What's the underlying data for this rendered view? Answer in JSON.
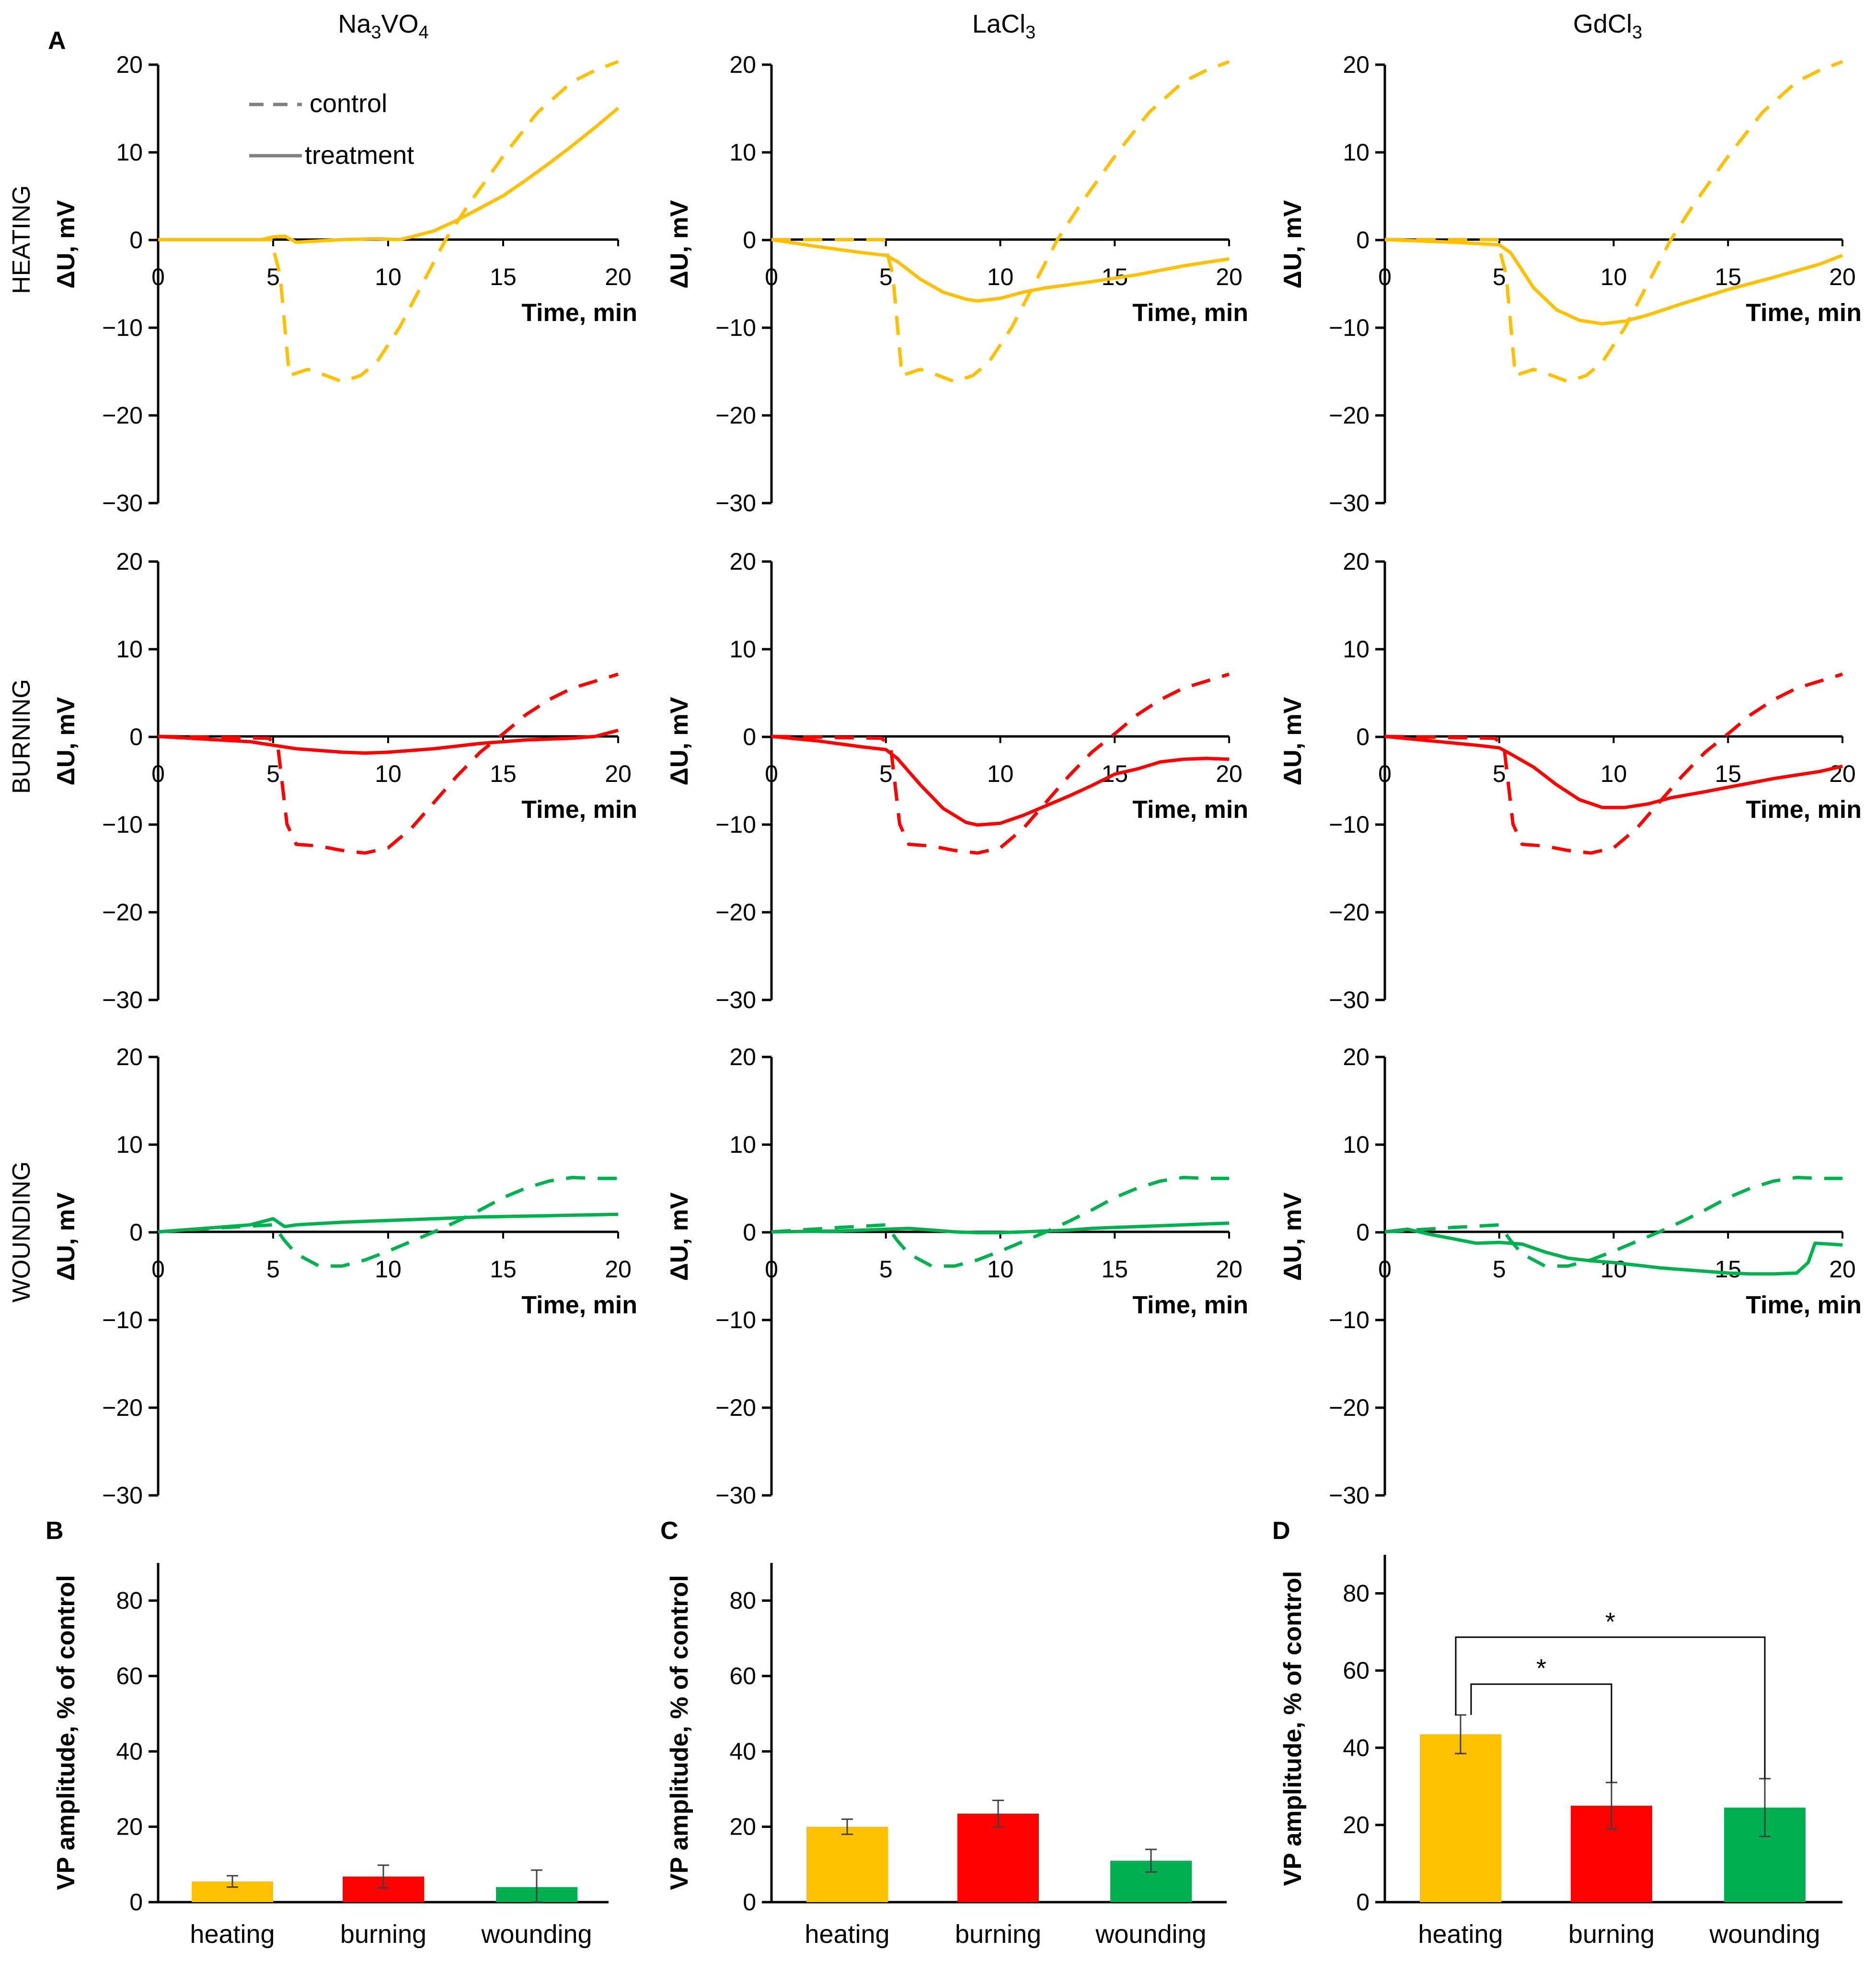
{
  "figure": {
    "panel_labels": {
      "A": "A",
      "B": "B",
      "C": "C",
      "D": "D"
    },
    "columns": [
      {
        "main": "Na",
        "sub1": "3",
        "mid": "VO",
        "sub2": "4"
      },
      {
        "main": "LaCl",
        "sub1": "3",
        "mid": "",
        "sub2": ""
      },
      {
        "main": "GdCl",
        "sub1": "3",
        "mid": "",
        "sub2": ""
      }
    ],
    "rows": [
      "HEATING",
      "BURNING",
      "WOUNDING"
    ],
    "legend": {
      "control": "control",
      "treatment": "treatment"
    },
    "line_ylabel": "ΔU, mV",
    "line_xlabel": "Time, min",
    "line_xticks": [
      "0",
      "5",
      "10",
      "15",
      "20"
    ],
    "line_yticks": [
      "20",
      "10",
      "0",
      "−10",
      "−20",
      "−30"
    ],
    "bar_ylabel": "VP amplitude, % of control",
    "bar_yticks": [
      "0",
      "20",
      "40",
      "60",
      "80"
    ],
    "bar_categories": [
      "heating",
      "burning",
      "wounding"
    ],
    "significance": [
      "*",
      "*"
    ]
  },
  "colors": {
    "heating": "#FFC000",
    "burning": "#FF0000",
    "wounding": "#00B050",
    "axis": "#000000"
  },
  "chart_data": [
    {
      "type": "line",
      "title": "Na3VO4 / HEATING",
      "xlabel": "Time, min",
      "ylabel": "ΔU, mV",
      "xlim": [
        0,
        20
      ],
      "ylim": [
        -30,
        20
      ],
      "color": "heating",
      "series": [
        {
          "name": "control",
          "style": "dashed",
          "x": [
            0,
            4.9,
            5.3,
            5.7,
            6.5,
            7.3,
            8,
            8.8,
            9.5,
            10.5,
            11.5,
            12.5,
            13.5,
            15,
            16.5,
            18,
            19,
            20
          ],
          "y": [
            0,
            0,
            -4,
            -15.5,
            -14.8,
            -15.5,
            -16.2,
            -15.5,
            -14,
            -10,
            -5,
            0,
            4,
            9.5,
            14.5,
            18,
            19.3,
            20.3
          ]
        },
        {
          "name": "treatment",
          "style": "solid",
          "x": [
            0,
            4.5,
            5,
            5.5,
            6,
            8,
            9.5,
            10.5,
            11,
            12,
            13,
            14,
            15,
            16,
            17,
            18,
            19,
            20
          ],
          "y": [
            0,
            0,
            0.3,
            0.4,
            -0.3,
            0,
            0.1,
            0,
            0.3,
            1,
            2.2,
            3.6,
            5,
            6.8,
            8.7,
            10.7,
            12.8,
            15
          ]
        }
      ]
    },
    {
      "type": "line",
      "title": "LaCl3 / HEATING",
      "xlabel": "Time, min",
      "ylabel": "ΔU, mV",
      "xlim": [
        0,
        20
      ],
      "ylim": [
        -30,
        20
      ],
      "color": "heating",
      "series": [
        {
          "name": "control",
          "style": "dashed",
          "x": [
            0,
            4.9,
            5.3,
            5.7,
            6.5,
            7.3,
            8,
            8.8,
            9.5,
            10.5,
            11.5,
            12.5,
            13.5,
            15,
            16.5,
            18,
            19,
            20
          ],
          "y": [
            0,
            0,
            -4,
            -15.5,
            -14.8,
            -15.5,
            -16.2,
            -15.5,
            -14,
            -10,
            -5,
            0,
            4,
            9.5,
            14.5,
            18,
            19.3,
            20.3
          ]
        },
        {
          "name": "treatment",
          "style": "solid",
          "x": [
            0,
            2,
            4,
            5,
            5.5,
            6.5,
            7.5,
            8.5,
            9,
            10,
            11,
            12,
            14,
            16,
            18,
            20
          ],
          "y": [
            0,
            -0.8,
            -1.5,
            -1.8,
            -2.5,
            -4.5,
            -6,
            -6.8,
            -7,
            -6.7,
            -6,
            -5.5,
            -4.8,
            -4,
            -3,
            -2.2
          ]
        }
      ]
    },
    {
      "type": "line",
      "title": "GdCl3 / HEATING",
      "xlabel": "Time, min",
      "ylabel": "ΔU, mV",
      "xlim": [
        0,
        20
      ],
      "ylim": [
        -30,
        20
      ],
      "color": "heating",
      "series": [
        {
          "name": "control",
          "style": "dashed",
          "x": [
            0,
            4.9,
            5.3,
            5.7,
            6.5,
            7.3,
            8,
            8.8,
            9.5,
            10.5,
            11.5,
            12.5,
            13.5,
            15,
            16.5,
            18,
            19,
            20
          ],
          "y": [
            0,
            0,
            -4,
            -15.5,
            -14.8,
            -15.5,
            -16.2,
            -15.5,
            -14,
            -10,
            -5,
            0,
            4,
            9.5,
            14.5,
            18,
            19.3,
            20.3
          ]
        },
        {
          "name": "treatment",
          "style": "solid",
          "x": [
            0,
            3,
            5,
            5.5,
            6.5,
            7.5,
            8.5,
            9.5,
            10.5,
            11.5,
            13,
            15,
            17,
            19,
            20
          ],
          "y": [
            0,
            -0.3,
            -0.6,
            -1.5,
            -5.5,
            -8,
            -9.2,
            -9.6,
            -9.3,
            -8.6,
            -7.3,
            -5.7,
            -4.3,
            -2.8,
            -1.8
          ]
        }
      ]
    },
    {
      "type": "line",
      "title": "Na3VO4 / BURNING",
      "xlabel": "Time, min",
      "ylabel": "ΔU, mV",
      "xlim": [
        0,
        20
      ],
      "ylim": [
        -30,
        20
      ],
      "color": "burning",
      "series": [
        {
          "name": "control",
          "style": "dashed",
          "x": [
            0,
            4.8,
            5.2,
            5.6,
            6,
            7,
            8,
            9,
            10,
            11,
            12,
            13,
            14,
            15,
            16,
            17,
            18,
            19,
            20
          ],
          "y": [
            0,
            -0.2,
            -1,
            -10,
            -12.3,
            -12.5,
            -13,
            -13.3,
            -12.7,
            -10.5,
            -7.5,
            -4.5,
            -1.8,
            0.3,
            2.5,
            4.2,
            5.5,
            6.3,
            7.1
          ]
        },
        {
          "name": "treatment",
          "style": "solid",
          "x": [
            0,
            2,
            4,
            5,
            6,
            7,
            8,
            9,
            10,
            11,
            12,
            13,
            14,
            15,
            16,
            17,
            18,
            19,
            20
          ],
          "y": [
            0,
            -0.3,
            -0.6,
            -1,
            -1.4,
            -1.6,
            -1.8,
            -1.9,
            -1.8,
            -1.6,
            -1.4,
            -1.1,
            -0.8,
            -0.6,
            -0.4,
            -0.3,
            -0.2,
            0,
            0.7
          ]
        }
      ]
    },
    {
      "type": "line",
      "title": "LaCl3 / BURNING",
      "xlabel": "Time, min",
      "ylabel": "ΔU, mV",
      "xlim": [
        0,
        20
      ],
      "ylim": [
        -30,
        20
      ],
      "color": "burning",
      "series": [
        {
          "name": "control",
          "style": "dashed",
          "x": [
            0,
            4.8,
            5.2,
            5.6,
            6,
            7,
            8,
            9,
            10,
            11,
            12,
            13,
            14,
            15,
            16,
            17,
            18,
            19,
            20
          ],
          "y": [
            0,
            -0.2,
            -1,
            -10,
            -12.3,
            -12.5,
            -13,
            -13.3,
            -12.7,
            -10.5,
            -7.5,
            -4.5,
            -1.8,
            0.3,
            2.5,
            4.2,
            5.5,
            6.3,
            7.1
          ]
        },
        {
          "name": "treatment",
          "style": "solid",
          "x": [
            0,
            2,
            4,
            5,
            5.5,
            6.5,
            7.5,
            8.5,
            9,
            10,
            11,
            12,
            13,
            14,
            15,
            16,
            17,
            18,
            19,
            20
          ],
          "y": [
            0,
            -0.5,
            -1.2,
            -1.5,
            -2.5,
            -5.5,
            -8.2,
            -9.8,
            -10.1,
            -9.9,
            -9,
            -7.9,
            -6.8,
            -5.6,
            -4.3,
            -3.7,
            -2.9,
            -2.6,
            -2.5,
            -2.6
          ]
        }
      ]
    },
    {
      "type": "line",
      "title": "GdCl3 / BURNING",
      "xlabel": "Time, min",
      "ylabel": "ΔU, mV",
      "xlim": [
        0,
        20
      ],
      "ylim": [
        -30,
        20
      ],
      "color": "burning",
      "series": [
        {
          "name": "control",
          "style": "dashed",
          "x": [
            0,
            4.8,
            5.2,
            5.6,
            6,
            7,
            8,
            9,
            10,
            11,
            12,
            13,
            14,
            15,
            16,
            17,
            18,
            19,
            20
          ],
          "y": [
            0,
            -0.2,
            -1,
            -10,
            -12.3,
            -12.5,
            -13,
            -13.3,
            -12.7,
            -10.5,
            -7.5,
            -4.5,
            -1.8,
            0.3,
            2.5,
            4.2,
            5.5,
            6.3,
            7.1
          ]
        },
        {
          "name": "treatment",
          "style": "solid",
          "x": [
            0,
            2,
            4,
            5,
            5.5,
            6.5,
            7.5,
            8.5,
            9.5,
            10.5,
            11.5,
            12.5,
            14,
            15,
            16,
            17,
            18,
            19,
            20
          ],
          "y": [
            0,
            -0.5,
            -1,
            -1.3,
            -2,
            -3.5,
            -5.5,
            -7.2,
            -8.1,
            -8.1,
            -7.7,
            -7,
            -6.3,
            -5.8,
            -5.3,
            -4.8,
            -4.4,
            -4,
            -3.4
          ]
        }
      ]
    },
    {
      "type": "line",
      "title": "Na3VO4 / WOUNDING",
      "xlabel": "Time, min",
      "ylabel": "ΔU, mV",
      "xlim": [
        0,
        20
      ],
      "ylim": [
        -30,
        20
      ],
      "color": "wounding",
      "series": [
        {
          "name": "control",
          "style": "dashed",
          "x": [
            0,
            3,
            5,
            5.5,
            6,
            7,
            8,
            9,
            10,
            11,
            12,
            13,
            14,
            15,
            16,
            17,
            18,
            19,
            20
          ],
          "y": [
            0,
            0.5,
            0.8,
            -1,
            -2.5,
            -3.9,
            -3.9,
            -3.2,
            -2.2,
            -1.1,
            0,
            1.2,
            2.5,
            3.9,
            5,
            5.8,
            6.2,
            6.1,
            6.1
          ]
        },
        {
          "name": "treatment",
          "style": "solid",
          "x": [
            0,
            2,
            4,
            5,
            5.5,
            6,
            8,
            10,
            12,
            14,
            16,
            18,
            20
          ],
          "y": [
            0,
            0.4,
            0.8,
            1.5,
            0.6,
            0.8,
            1.1,
            1.3,
            1.5,
            1.7,
            1.8,
            1.9,
            2
          ]
        }
      ]
    },
    {
      "type": "line",
      "title": "LaCl3 / WOUNDING",
      "xlabel": "Time, min",
      "ylabel": "ΔU, mV",
      "xlim": [
        0,
        20
      ],
      "ylim": [
        -30,
        20
      ],
      "color": "wounding",
      "series": [
        {
          "name": "control",
          "style": "dashed",
          "x": [
            0,
            3,
            5,
            5.5,
            6,
            7,
            8,
            9,
            10,
            11,
            12,
            13,
            14,
            15,
            16,
            17,
            18,
            19,
            20
          ],
          "y": [
            0,
            0.5,
            0.8,
            -1,
            -2.5,
            -3.9,
            -3.9,
            -3.2,
            -2.2,
            -1.1,
            0,
            1.2,
            2.5,
            3.9,
            5,
            5.8,
            6.2,
            6.1,
            6.1
          ]
        },
        {
          "name": "treatment",
          "style": "solid",
          "x": [
            0,
            3,
            5,
            6,
            7,
            8,
            9,
            10,
            11,
            12,
            13,
            14,
            15,
            16,
            17,
            18,
            19,
            20
          ],
          "y": [
            0,
            0.1,
            0.3,
            0.4,
            0.2,
            0,
            -0.1,
            -0.1,
            0,
            0.1,
            0.2,
            0.4,
            0.5,
            0.6,
            0.7,
            0.8,
            0.9,
            1
          ]
        }
      ]
    },
    {
      "type": "line",
      "title": "GdCl3 / WOUNDING",
      "xlabel": "Time, min",
      "ylabel": "ΔU, mV",
      "xlim": [
        0,
        20
      ],
      "ylim": [
        -30,
        20
      ],
      "color": "wounding",
      "series": [
        {
          "name": "control",
          "style": "dashed",
          "x": [
            0,
            3,
            5,
            5.5,
            6,
            7,
            8,
            9,
            10,
            11,
            12,
            13,
            14,
            15,
            16,
            17,
            18,
            19,
            20
          ],
          "y": [
            0,
            0.5,
            0.8,
            -1,
            -2.5,
            -3.9,
            -3.9,
            -3.2,
            -2.2,
            -1.1,
            0,
            1.2,
            2.5,
            3.9,
            5,
            5.8,
            6.2,
            6.1,
            6.1
          ]
        },
        {
          "name": "treatment",
          "style": "solid",
          "x": [
            0,
            1,
            2,
            3,
            4,
            5,
            6,
            7,
            8,
            9,
            10,
            11,
            12,
            13,
            14,
            15,
            16,
            17,
            18,
            18.5,
            18.8,
            19.5,
            20
          ],
          "y": [
            0,
            0.3,
            -0.3,
            -0.8,
            -1.3,
            -1.2,
            -1.4,
            -2.3,
            -3,
            -3.3,
            -3.5,
            -3.8,
            -4.1,
            -4.3,
            -4.5,
            -4.7,
            -4.8,
            -4.8,
            -4.7,
            -3.5,
            -1.3,
            -1.4,
            -1.5
          ]
        }
      ]
    },
    {
      "type": "bar",
      "title": "B",
      "ylabel": "VP amplitude, % of control",
      "ylim": [
        0,
        90
      ],
      "categories": [
        "heating",
        "burning",
        "wounding"
      ],
      "values": [
        5.5,
        6.8,
        4
      ],
      "errors": [
        1.5,
        3,
        4.5
      ]
    },
    {
      "type": "bar",
      "title": "C",
      "ylabel": "VP amplitude, % of control",
      "ylim": [
        0,
        90
      ],
      "categories": [
        "heating",
        "burning",
        "wounding"
      ],
      "values": [
        20,
        23.5,
        11
      ],
      "errors": [
        2,
        3.5,
        3
      ]
    },
    {
      "type": "bar",
      "title": "D",
      "ylabel": "VP amplitude, % of control",
      "ylim": [
        0,
        90
      ],
      "categories": [
        "heating",
        "burning",
        "wounding"
      ],
      "values": [
        43.5,
        25,
        24.5
      ],
      "errors": [
        5,
        6,
        7.5
      ],
      "annotations": [
        {
          "from": "heating",
          "to": "burning",
          "label": "*"
        },
        {
          "from": "heating",
          "to": "wounding",
          "label": "*"
        }
      ]
    }
  ]
}
